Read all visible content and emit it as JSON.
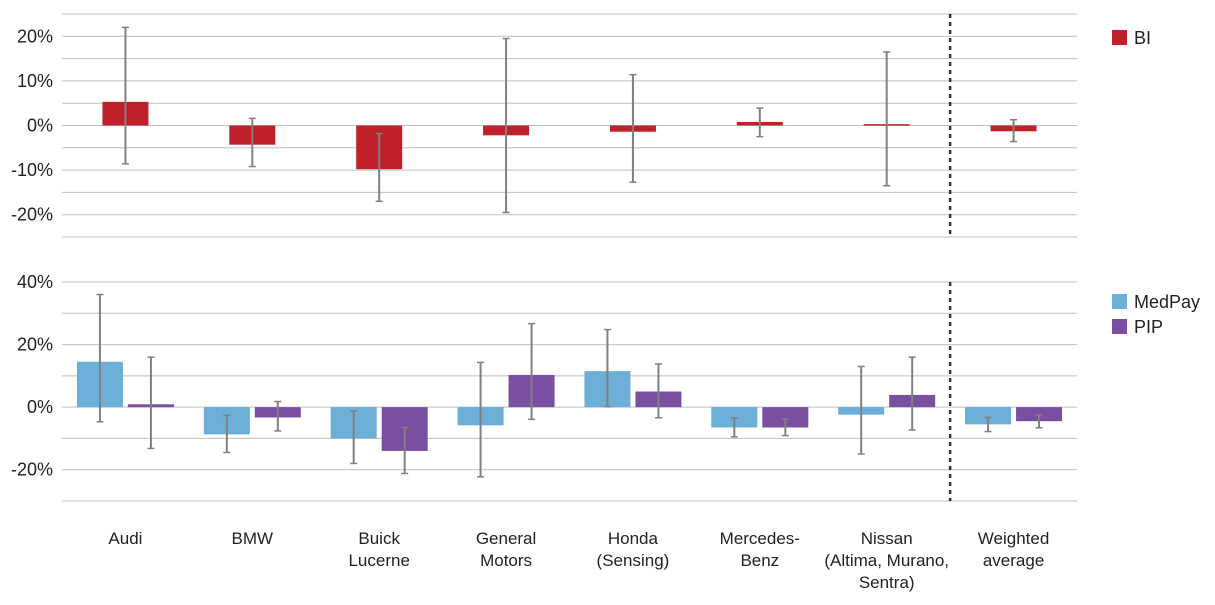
{
  "categories": [
    "Audi",
    "BMW",
    "Buick Lucerne",
    "General Motors",
    "Honda (Sensing)",
    "Mercedes-Benz",
    "Nissan (Altima, Murano, Sentra)",
    "Weighted average"
  ],
  "category_label_lines": [
    [
      "Audi"
    ],
    [
      "BMW"
    ],
    [
      "Buick",
      "Lucerne"
    ],
    [
      "General",
      "Motors"
    ],
    [
      "Honda",
      "(Sensing)"
    ],
    [
      "Mercedes-",
      "Benz"
    ],
    [
      "Nissan",
      "(Altima, Murano,",
      "Sentra)"
    ],
    [
      "Weighted",
      "average"
    ]
  ],
  "colors": {
    "BI": "#c0202a",
    "MedPay": "#6baed6",
    "PIP": "#7b4fa0",
    "error_bar": "#808080",
    "grid": "#bfbfbf",
    "divider": "#333333"
  },
  "chart_data": [
    {
      "type": "bar",
      "panel": "top",
      "categories": [
        "Audi",
        "BMW",
        "Buick Lucerne",
        "General Motors",
        "Honda (Sensing)",
        "Mercedes-Benz",
        "Nissan (Altima, Murano, Sentra)",
        "Weighted average"
      ],
      "series": [
        {
          "name": "BI",
          "values": [
            5.3,
            -4.3,
            -9.8,
            -2.2,
            -1.4,
            0.8,
            0.3,
            -1.3
          ],
          "error_low": [
            -8.6,
            -9.2,
            -17.0,
            -19.5,
            -12.7,
            -2.5,
            -13.5,
            -3.6
          ],
          "error_high": [
            22.0,
            1.6,
            -1.8,
            19.5,
            11.4,
            3.9,
            16.5,
            1.3
          ]
        }
      ],
      "y_ticks": [
        -20,
        -10,
        0,
        10,
        20
      ],
      "y_tick_labels": [
        "-20%",
        "-10%",
        "0%",
        "10%",
        "20%"
      ],
      "ylim": [
        -25,
        25
      ],
      "grid": true,
      "legend": "top-right"
    },
    {
      "type": "bar",
      "panel": "bottom",
      "categories": [
        "Audi",
        "BMW",
        "Buick Lucerne",
        "General Motors",
        "Honda (Sensing)",
        "Mercedes-Benz",
        "Nissan (Altima, Murano, Sentra)",
        "Weighted average"
      ],
      "series": [
        {
          "name": "MedPay",
          "values": [
            14.5,
            -8.7,
            -10.0,
            -5.8,
            11.5,
            -6.5,
            -2.4,
            -5.5
          ],
          "error_low": [
            -4.7,
            -14.5,
            -18.0,
            -22.3,
            0.2,
            -9.5,
            -15.0,
            -7.8
          ],
          "error_high": [
            36.0,
            -2.6,
            -1.2,
            14.3,
            24.8,
            -3.4,
            13.0,
            -3.3
          ]
        },
        {
          "name": "PIP",
          "values": [
            0.9,
            -3.3,
            -14.0,
            10.3,
            5.0,
            -6.5,
            3.9,
            -4.5
          ],
          "error_low": [
            -13.2,
            -7.6,
            -21.2,
            -3.9,
            -3.4,
            -9.1,
            -7.3,
            -6.6
          ],
          "error_high": [
            16.0,
            1.8,
            -6.5,
            26.7,
            13.8,
            -3.8,
            16.0,
            -2.5
          ]
        }
      ],
      "y_ticks": [
        -20,
        0,
        20,
        40
      ],
      "y_tick_labels": [
        "-20%",
        "0%",
        "20%",
        "40%"
      ],
      "ylim": [
        -30,
        40
      ],
      "grid": true,
      "legend": "top-right"
    }
  ]
}
